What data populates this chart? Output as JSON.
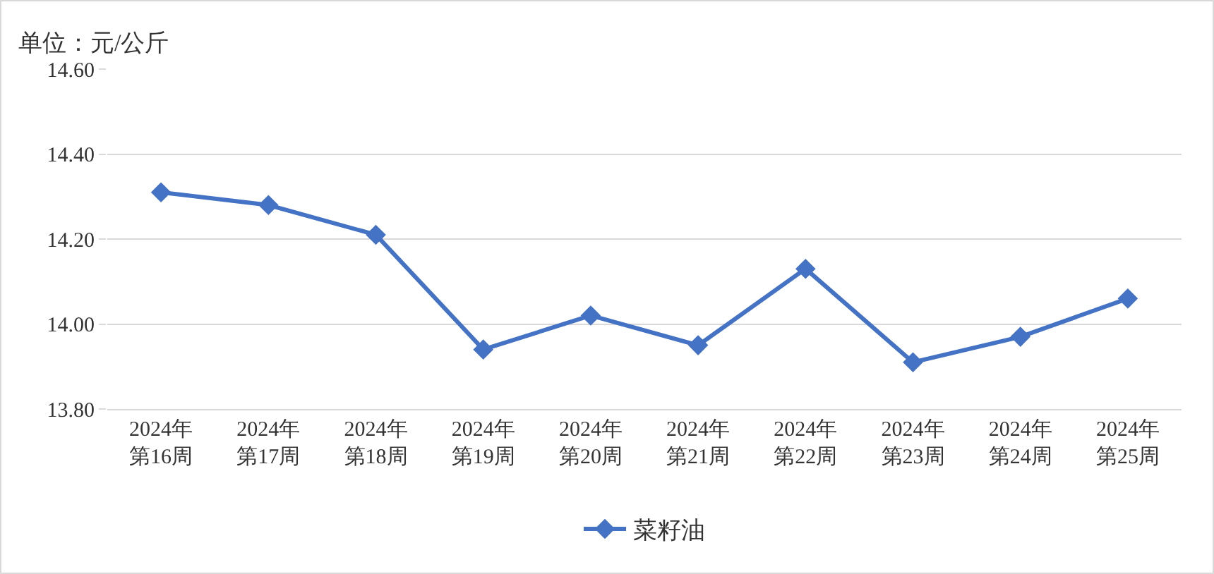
{
  "chart_data": {
    "type": "line",
    "ylabel": "单位：元/公斤",
    "categories": [
      "2024年第16周",
      "2024年第17周",
      "2024年第18周",
      "2024年第19周",
      "2024年第20周",
      "2024年第21周",
      "2024年第22周",
      "2024年第23周",
      "2024年第24周",
      "2024年第25周"
    ],
    "series": [
      {
        "name": "菜籽油",
        "color": "#4472c4",
        "values": [
          14.31,
          14.28,
          14.21,
          13.94,
          14.02,
          13.95,
          14.13,
          13.91,
          13.97,
          14.06
        ]
      }
    ],
    "ylim": [
      13.8,
      14.6
    ],
    "yticks": [
      {
        "value": 13.8,
        "label": "13.80"
      },
      {
        "value": 14.0,
        "label": "14.00"
      },
      {
        "value": 14.2,
        "label": "14.20"
      },
      {
        "value": 14.4,
        "label": "14.40"
      },
      {
        "value": 14.6,
        "label": "14.60"
      }
    ],
    "grid": "y",
    "legend": "bottom",
    "marker": "diamond",
    "line_style": "solid"
  }
}
